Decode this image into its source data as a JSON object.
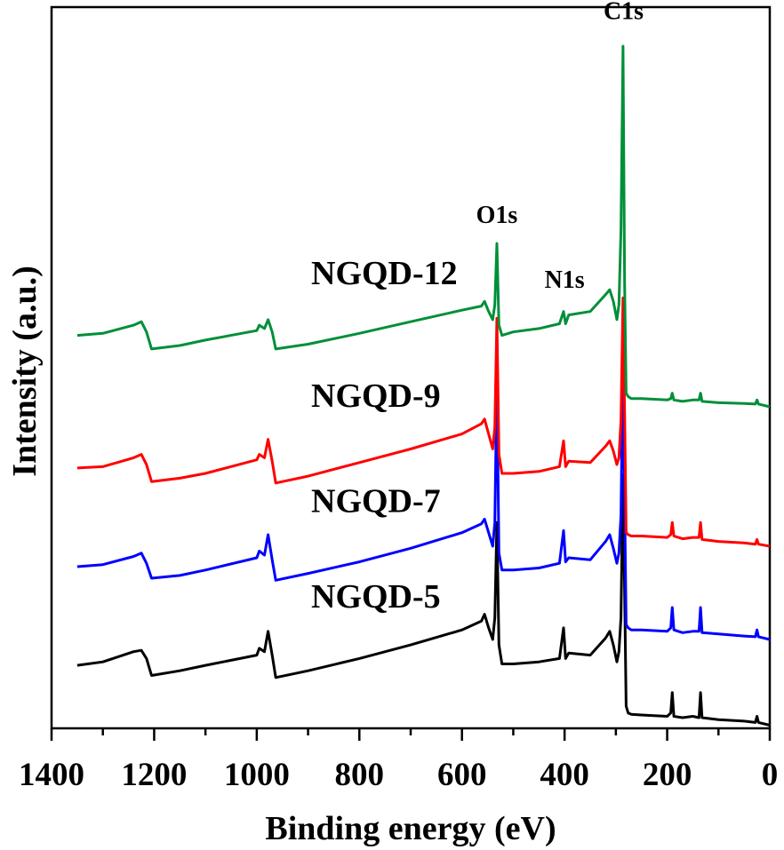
{
  "chart_data": {
    "type": "line",
    "title": "",
    "xlabel": "Binding energy (eV)",
    "ylabel": "Intensity (a.u.)",
    "xlim": [
      1400,
      0
    ],
    "x_reversed": true,
    "ylim": [
      0,
      10
    ],
    "y_ticks_shown": false,
    "xticks": [
      1400,
      1200,
      1000,
      800,
      600,
      400,
      200,
      0
    ],
    "xtick_labels": [
      "1400",
      "1200",
      "1000",
      "800",
      "600",
      "400",
      "200",
      "0"
    ],
    "grid": false,
    "legend": "none",
    "series": [
      {
        "name": "NGQD-5",
        "color": "#000000",
        "x": [
          1350,
          1300,
          1240,
          1225,
          1215,
          1205,
          1150,
          1100,
          1000,
          995,
          985,
          978,
          970,
          963,
          900,
          800,
          700,
          600,
          562,
          556,
          548,
          540,
          536,
          532,
          528,
          522,
          500,
          450,
          410,
          402,
          398,
          392,
          350,
          320,
          312,
          305,
          298,
          294,
          290,
          286,
          283,
          280,
          276,
          270,
          250,
          200,
          193,
          190,
          187,
          170,
          150,
          138,
          135,
          132,
          100,
          50,
          28,
          25,
          22,
          0
        ],
        "values": [
          0.9,
          0.95,
          1.1,
          1.12,
          1.0,
          0.75,
          0.82,
          0.9,
          1.05,
          1.15,
          1.1,
          1.4,
          1.05,
          0.72,
          0.82,
          1.0,
          1.2,
          1.42,
          1.55,
          1.65,
          1.45,
          1.28,
          1.6,
          3.0,
          1.2,
          0.92,
          0.92,
          0.95,
          1.0,
          1.45,
          1.0,
          1.08,
          1.05,
          1.3,
          1.4,
          1.2,
          0.95,
          1.1,
          1.6,
          3.7,
          2.0,
          0.3,
          0.2,
          0.18,
          0.17,
          0.15,
          0.2,
          0.5,
          0.15,
          0.13,
          0.15,
          0.13,
          0.5,
          0.13,
          0.1,
          0.08,
          0.06,
          0.15,
          0.06,
          0.02
        ]
      },
      {
        "name": "NGQD-7",
        "color": "#0000ff",
        "x": [
          1350,
          1300,
          1240,
          1225,
          1215,
          1205,
          1150,
          1100,
          1000,
          995,
          985,
          978,
          970,
          963,
          900,
          800,
          700,
          600,
          562,
          556,
          548,
          540,
          536,
          532,
          528,
          522,
          500,
          450,
          410,
          402,
          398,
          392,
          350,
          320,
          312,
          305,
          298,
          294,
          290,
          286,
          283,
          280,
          276,
          270,
          250,
          200,
          193,
          190,
          187,
          170,
          150,
          138,
          135,
          132,
          100,
          50,
          28,
          25,
          22,
          0
        ],
        "values": [
          2.35,
          2.38,
          2.5,
          2.55,
          2.4,
          2.18,
          2.22,
          2.3,
          2.48,
          2.58,
          2.52,
          2.82,
          2.45,
          2.15,
          2.25,
          2.42,
          2.62,
          2.85,
          2.98,
          3.05,
          2.85,
          2.65,
          3.0,
          5.1,
          2.55,
          2.3,
          2.3,
          2.33,
          2.4,
          2.88,
          2.42,
          2.48,
          2.45,
          2.72,
          2.82,
          2.62,
          2.4,
          2.55,
          3.1,
          5.5,
          3.3,
          1.5,
          1.45,
          1.42,
          1.42,
          1.4,
          1.45,
          1.75,
          1.42,
          1.38,
          1.4,
          1.4,
          1.75,
          1.38,
          1.36,
          1.33,
          1.32,
          1.42,
          1.32,
          1.28
        ]
      },
      {
        "name": "NGQD-9",
        "color": "#ff0000",
        "x": [
          1350,
          1300,
          1240,
          1225,
          1215,
          1205,
          1150,
          1100,
          1000,
          995,
          985,
          978,
          970,
          963,
          900,
          800,
          700,
          600,
          562,
          556,
          548,
          540,
          536,
          532,
          528,
          522,
          500,
          450,
          410,
          402,
          398,
          392,
          350,
          320,
          312,
          305,
          298,
          294,
          290,
          286,
          283,
          280,
          276,
          270,
          250,
          200,
          193,
          190,
          187,
          170,
          150,
          138,
          135,
          132,
          100,
          50,
          28,
          25,
          22,
          0
        ],
        "values": [
          3.8,
          3.82,
          3.95,
          4.0,
          3.85,
          3.6,
          3.65,
          3.72,
          3.92,
          4.0,
          3.95,
          4.22,
          3.9,
          3.58,
          3.68,
          3.88,
          4.08,
          4.3,
          4.45,
          4.52,
          4.3,
          4.08,
          4.4,
          6.0,
          4.0,
          3.72,
          3.72,
          3.75,
          3.82,
          4.2,
          3.82,
          3.9,
          3.88,
          4.12,
          4.2,
          4.05,
          3.85,
          3.95,
          4.5,
          6.3,
          4.6,
          2.85,
          2.82,
          2.8,
          2.8,
          2.78,
          2.82,
          3.0,
          2.8,
          2.76,
          2.78,
          2.78,
          3.0,
          2.75,
          2.72,
          2.7,
          2.68,
          2.75,
          2.68,
          2.65
        ]
      },
      {
        "name": "NGQD-12",
        "color": "#008f39",
        "x": [
          1350,
          1300,
          1240,
          1225,
          1215,
          1205,
          1150,
          1100,
          1000,
          995,
          985,
          978,
          970,
          963,
          900,
          800,
          700,
          600,
          562,
          556,
          548,
          540,
          536,
          532,
          528,
          522,
          500,
          450,
          410,
          402,
          398,
          392,
          350,
          320,
          312,
          305,
          298,
          294,
          290,
          286,
          283,
          280,
          276,
          270,
          250,
          200,
          193,
          190,
          187,
          170,
          150,
          138,
          135,
          132,
          100,
          50,
          28,
          25,
          22,
          0
        ],
        "values": [
          5.75,
          5.78,
          5.9,
          5.95,
          5.8,
          5.55,
          5.6,
          5.68,
          5.82,
          5.9,
          5.85,
          5.98,
          5.8,
          5.55,
          5.62,
          5.78,
          5.95,
          6.12,
          6.18,
          6.25,
          6.1,
          5.98,
          6.2,
          7.1,
          5.9,
          5.75,
          5.8,
          5.85,
          5.92,
          6.1,
          5.92,
          6.05,
          6.1,
          6.35,
          6.42,
          6.25,
          5.98,
          6.2,
          7.3,
          10.0,
          6.5,
          4.9,
          4.85,
          4.82,
          4.82,
          4.8,
          4.82,
          4.9,
          4.8,
          4.78,
          4.8,
          4.8,
          4.9,
          4.78,
          4.76,
          4.75,
          4.74,
          4.8,
          4.74,
          4.7
        ]
      }
    ],
    "annotations": [
      {
        "text": "NGQD-12",
        "x": 1000,
        "y": 6.5,
        "size": "large"
      },
      {
        "text": "NGQD-9",
        "x": 1000,
        "y": 4.7,
        "size": "large"
      },
      {
        "text": "NGQD-7",
        "x": 1000,
        "y": 3.15,
        "size": "large"
      },
      {
        "text": "NGQD-5",
        "x": 1000,
        "y": 1.75,
        "size": "large"
      },
      {
        "text": "C1s",
        "x": 285,
        "y": 10.4,
        "size": "small"
      },
      {
        "text": "O1s",
        "x": 532,
        "y": 7.4,
        "size": "small"
      },
      {
        "text": "N1s",
        "x": 400,
        "y": 6.45,
        "size": "small"
      }
    ]
  }
}
